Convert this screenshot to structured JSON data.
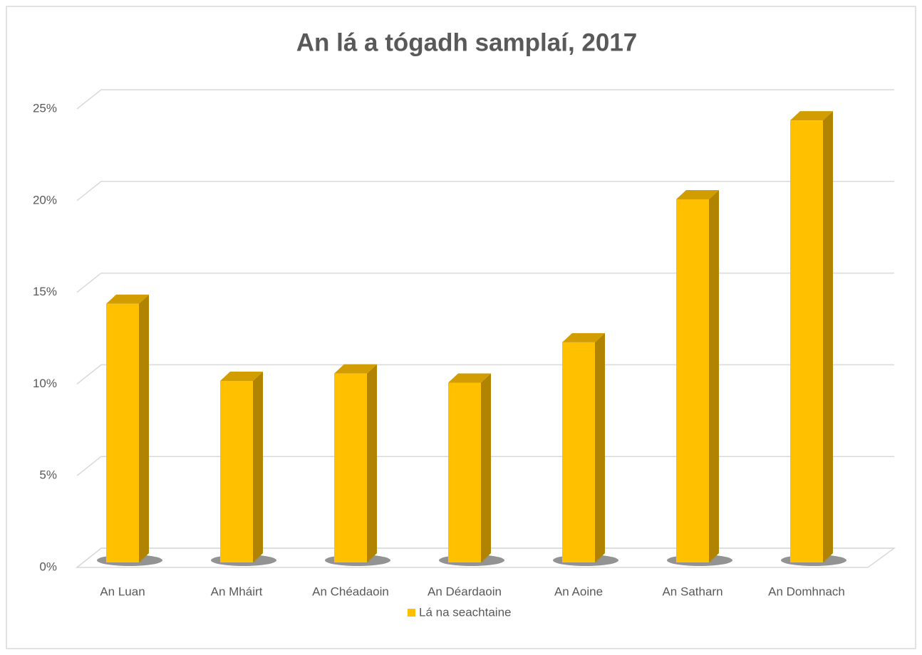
{
  "chart_data": {
    "type": "bar3d",
    "title": "An lá a tógadh samplaí, 2017",
    "categories": [
      "An Luan",
      "An Mháirt",
      "An Chéadaoin",
      "An Déardaoin",
      "An Aoine",
      "An Satharn",
      "An Domhnach"
    ],
    "series": [
      {
        "name": "Lá na seachtaine",
        "color": "#ffc000",
        "values": [
          14.1,
          9.9,
          10.3,
          9.8,
          12.0,
          19.8,
          24.1
        ]
      }
    ],
    "ylim": [
      0,
      25
    ],
    "yticks": [
      {
        "value": 0,
        "label": "0%"
      },
      {
        "value": 5,
        "label": "5%"
      },
      {
        "value": 10,
        "label": "10%"
      },
      {
        "value": 15,
        "label": "15%"
      },
      {
        "value": 20,
        "label": "20%"
      },
      {
        "value": 25,
        "label": "25%"
      }
    ],
    "grid": true,
    "legend": "bottom"
  }
}
